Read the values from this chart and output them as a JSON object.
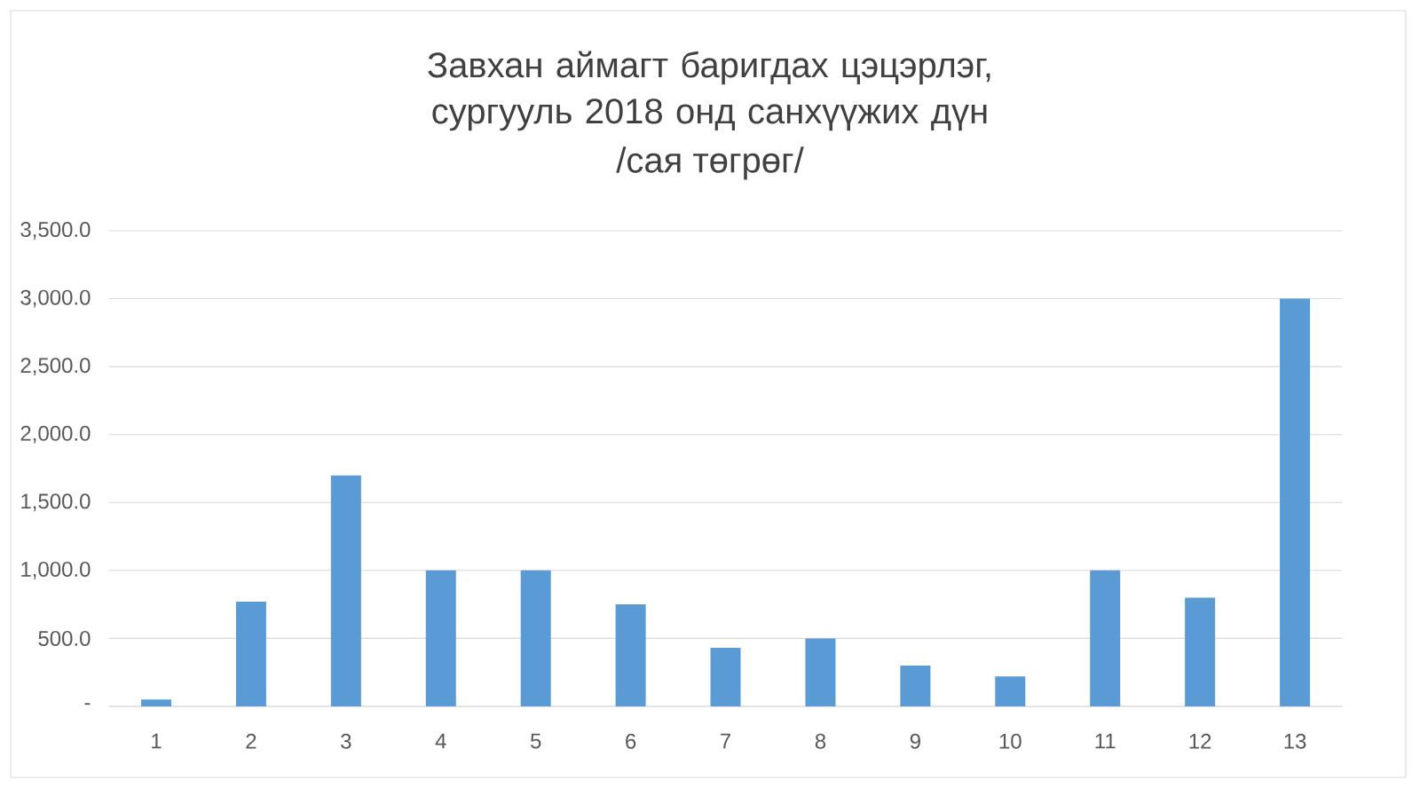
{
  "chart_data": {
    "type": "bar",
    "title": "Завхан аймагт баригдах цэцэрлэг, сургууль 2018 онд санхүүжих дүн",
    "subtitle": "/сая төгрөг/",
    "categories": [
      "1",
      "2",
      "3",
      "4",
      "5",
      "6",
      "7",
      "8",
      "9",
      "10",
      "11",
      "12",
      "13"
    ],
    "values": [
      50,
      770,
      1700,
      1000,
      1000,
      750,
      430,
      500,
      300,
      220,
      1000,
      800,
      3000
    ],
    "color": "#5b9bd5",
    "ylim": [
      0,
      3500
    ],
    "yticks": [
      {
        "value": 0,
        "label": "-"
      },
      {
        "value": 500,
        "label": "500.0"
      },
      {
        "value": 1000,
        "label": "1,000.0"
      },
      {
        "value": 1500,
        "label": "1,500.0"
      },
      {
        "value": 2000,
        "label": "2,000.0"
      },
      {
        "value": 2500,
        "label": "2,500.0"
      },
      {
        "value": 3000,
        "label": "3,000.0"
      },
      {
        "value": 3500,
        "label": "3,500.0"
      }
    ],
    "grid": "y"
  }
}
